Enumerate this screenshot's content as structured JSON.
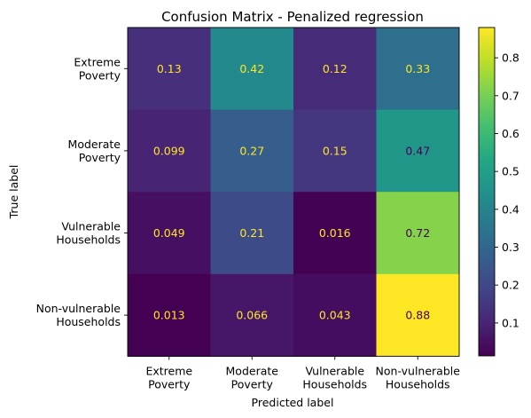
{
  "chart_data": {
    "type": "heatmap",
    "title": "Confusion Matrix - Penalized regression",
    "xlabel": "Predicted label",
    "ylabel": "True label",
    "x_categories": [
      "Extreme\nPoverty",
      "Moderate\nPoverty",
      "Vulnerable\nHouseholds",
      "Non-vulnerable\nHouseholds"
    ],
    "y_categories": [
      "Extreme\nPoverty",
      "Moderate\nPoverty",
      "Vulnerable\nHouseholds",
      "Non-vulnerable\nHouseholds"
    ],
    "values": [
      [
        0.13,
        0.42,
        0.12,
        0.33
      ],
      [
        0.099,
        0.27,
        0.15,
        0.47
      ],
      [
        0.049,
        0.21,
        0.016,
        0.72
      ],
      [
        0.013,
        0.066,
        0.043,
        0.88
      ]
    ],
    "cell_labels": [
      [
        "0.13",
        "0.42",
        "0.12",
        "0.33"
      ],
      [
        "0.099",
        "0.27",
        "0.15",
        "0.47"
      ],
      [
        "0.049",
        "0.21",
        "0.016",
        "0.72"
      ],
      [
        "0.013",
        "0.066",
        "0.043",
        "0.88"
      ]
    ],
    "colormap": "viridis",
    "colorbar": {
      "range": [
        0.013,
        0.88
      ],
      "ticks": [
        0.1,
        0.2,
        0.3,
        0.4,
        0.5,
        0.6,
        0.7,
        0.8
      ],
      "tick_labels": [
        "0.1",
        "0.2",
        "0.3",
        "0.4",
        "0.5",
        "0.6",
        "0.7",
        "0.8"
      ]
    },
    "text_colors": {
      "light": "#fde725",
      "dark": "#440154"
    }
  }
}
